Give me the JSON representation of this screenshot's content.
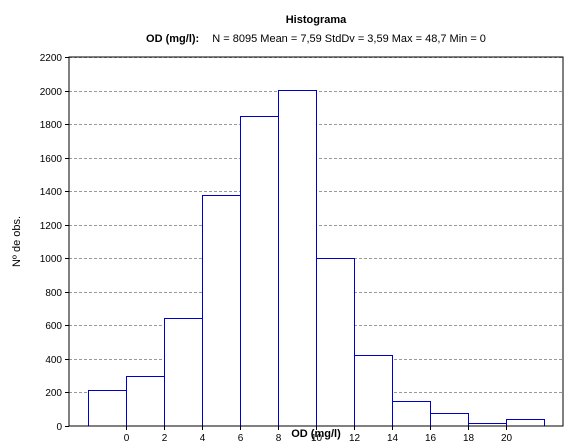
{
  "chart_data": {
    "type": "bar",
    "title": "Histograma",
    "subtitle_variable": "OD (mg/l):",
    "subtitle_stats": "N = 8095 Mean = 7,59 StdDv = 3,59 Max = 48,7 Min = 0",
    "xlabel": "OD (mg/l)",
    "ylabel": "Nº de obs.",
    "ylim": [
      0,
      2200
    ],
    "yticks": [
      0,
      200,
      400,
      600,
      800,
      1000,
      1200,
      1400,
      1600,
      1800,
      2000,
      2200
    ],
    "ytick_labels": [
      "0",
      "200",
      "400",
      "600",
      "800",
      "1000",
      "1200",
      "1400",
      "1600",
      "1800",
      "2000",
      "2200"
    ],
    "xlim": [
      -3,
      23
    ],
    "xticks": [
      0,
      2,
      4,
      6,
      8,
      10,
      12,
      14,
      16,
      18,
      20
    ],
    "xtick_labels": [
      "0",
      "2",
      "4",
      "6",
      "8",
      "10",
      "12",
      "14",
      "16",
      "18",
      "20"
    ],
    "bins": [
      {
        "start": -2,
        "end": 0,
        "value": 215
      },
      {
        "start": 0,
        "end": 2,
        "value": 300
      },
      {
        "start": 2,
        "end": 4,
        "value": 645
      },
      {
        "start": 4,
        "end": 6,
        "value": 1380
      },
      {
        "start": 6,
        "end": 8,
        "value": 1850
      },
      {
        "start": 8,
        "end": 10,
        "value": 2005
      },
      {
        "start": 10,
        "end": 12,
        "value": 1000
      },
      {
        "start": 12,
        "end": 14,
        "value": 425
      },
      {
        "start": 14,
        "end": 16,
        "value": 150
      },
      {
        "start": 16,
        "end": 18,
        "value": 75
      },
      {
        "start": 18,
        "end": 20,
        "value": 20
      },
      {
        "start": 20,
        "end": 22,
        "value": 40
      }
    ],
    "grid": true,
    "bar_edge_color": "#0000cc",
    "bar_fill_color": "#ffffff",
    "grid_color": "#9a9a9a"
  }
}
